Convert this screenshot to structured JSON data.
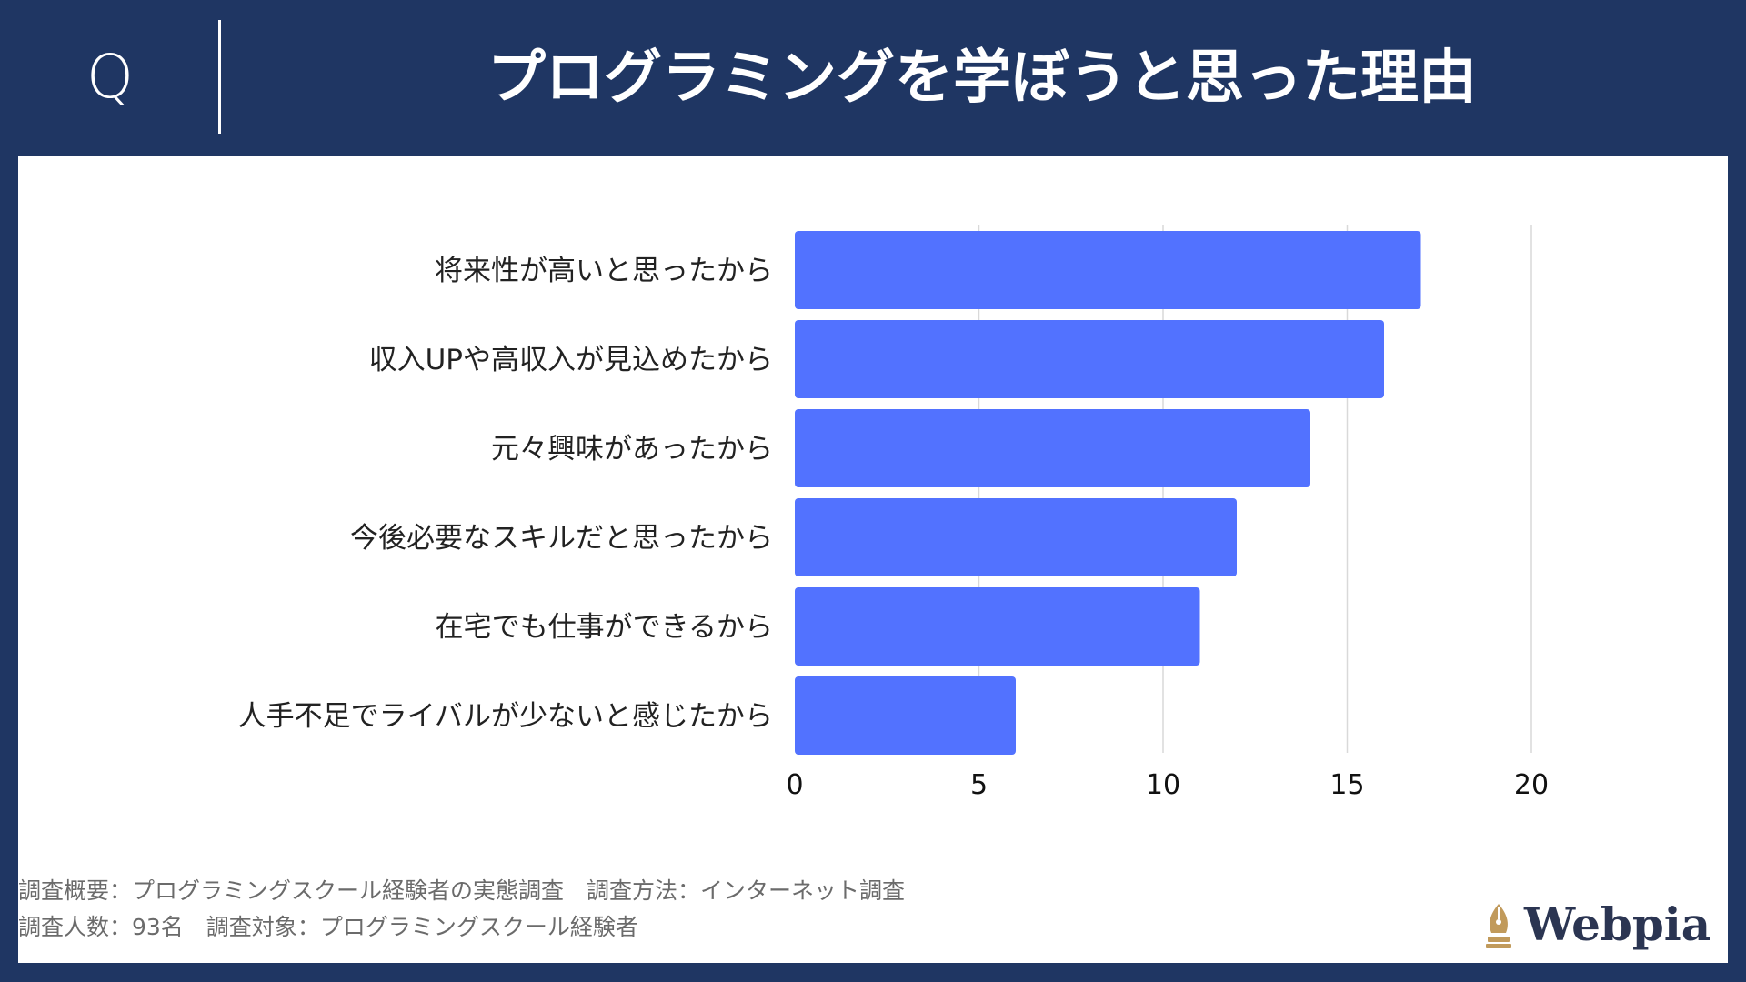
{
  "header": {
    "q_mark": "Q",
    "title": "プログラミングを学ぼうと思った理由"
  },
  "footnotes": {
    "line1": "調査概要：プログラミングスクール経験者の実態調査　調査方法：インターネット調査",
    "line2": "調査人数：93名　調査対象：プログラミングスクール経験者"
  },
  "logo": {
    "text": "Webpia",
    "icon": "fountain-pen-nib-icon"
  },
  "colors": {
    "background": "#1f3663",
    "bar": "#5272ff",
    "grid": "#d9d9d9",
    "logo_gold": "#c19a5b"
  },
  "chart_data": {
    "type": "bar",
    "orientation": "horizontal",
    "title": "プログラミングを学ぼうと思った理由",
    "xlabel": "",
    "ylabel": "",
    "categories": [
      "将来性が高いと思ったから",
      "収入UPや高収入が見込めたから",
      "元々興味があったから",
      "今後必要なスキルだと思ったから",
      "在宅でも仕事ができるから",
      "人手不足でライバルが少ないと感じたから"
    ],
    "values": [
      17,
      16,
      14,
      12,
      11,
      6
    ],
    "xlim": [
      0,
      20
    ],
    "xticks": [
      "0",
      "5",
      "10",
      "15",
      "20"
    ],
    "grid": "vertical",
    "legend": "none"
  }
}
